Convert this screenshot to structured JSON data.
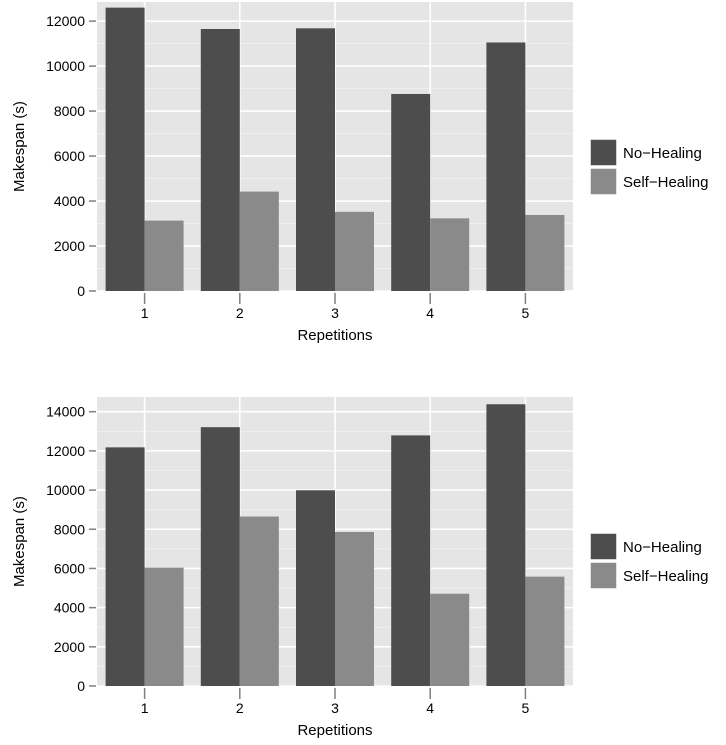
{
  "chart_data": [
    {
      "type": "bar",
      "title": "",
      "xlabel": "Repetitions",
      "ylabel": "Makespan (s)",
      "categories": [
        "1",
        "2",
        "3",
        "4",
        "5"
      ],
      "ylim": [
        0,
        12850
      ],
      "yticks": [
        0,
        2000,
        4000,
        6000,
        8000,
        10000,
        12000
      ],
      "ytick_labels": [
        "0",
        "2000",
        "4000",
        "6000",
        "8000",
        "10000",
        "12000"
      ],
      "grid": true,
      "legend_position": "right",
      "series": [
        {
          "name": "No−Healing",
          "color": "#4d4d4d",
          "values": [
            12600,
            11650,
            11680,
            8760,
            11050
          ]
        },
        {
          "name": "Self−Healing",
          "color": "#8a8a8a",
          "values": [
            3130,
            4420,
            3520,
            3230,
            3380
          ]
        }
      ]
    },
    {
      "type": "bar",
      "title": "",
      "xlabel": "Repetitions",
      "ylabel": "Makespan (s)",
      "categories": [
        "1",
        "2",
        "3",
        "4",
        "5"
      ],
      "ylim": [
        0,
        14750
      ],
      "yticks": [
        0,
        2000,
        4000,
        6000,
        8000,
        10000,
        12000,
        14000
      ],
      "ytick_labels": [
        "0",
        "2000",
        "4000",
        "6000",
        "8000",
        "10000",
        "12000",
        "14000"
      ],
      "grid": true,
      "legend_position": "right",
      "series": [
        {
          "name": "No−Healing",
          "color": "#4d4d4d",
          "values": [
            12180,
            13210,
            9990,
            12790,
            14380
          ]
        },
        {
          "name": "Self−Healing",
          "color": "#8a8a8a",
          "values": [
            6040,
            8650,
            7860,
            4710,
            5580
          ]
        }
      ]
    }
  ]
}
